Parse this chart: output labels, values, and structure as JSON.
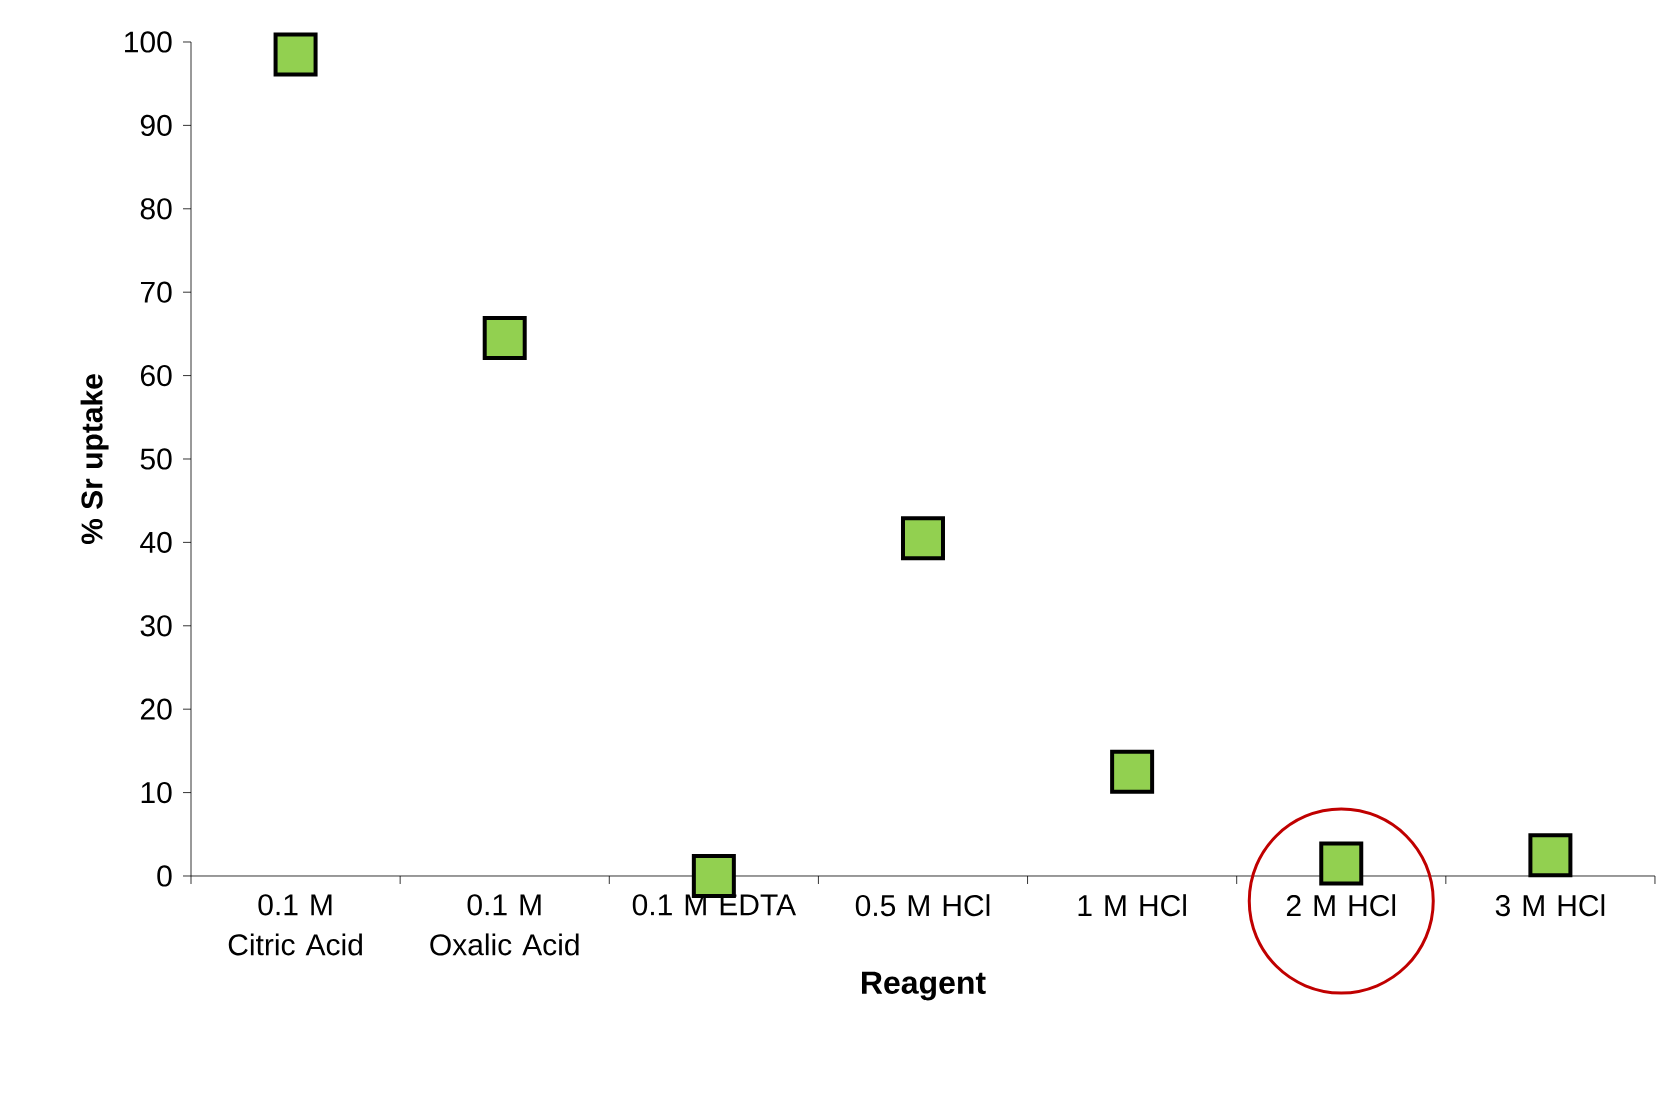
{
  "chart_data": {
    "type": "scatter",
    "xlabel": "Reagent",
    "ylabel": "% Sr uptake",
    "categories": [
      "0.1 M Citric Acid",
      "0.1 M Oxalic Acid",
      "0.1 M EDTA",
      "0.5 M HCl",
      "1 M HCl",
      "2 M HCl",
      "3 M HCl"
    ],
    "values": [
      98.5,
      64.5,
      0,
      40.5,
      12.5,
      1.5,
      2.5
    ],
    "color": "#92d050",
    "marker": "square",
    "grid": false,
    "ylim": [
      0,
      100
    ],
    "yticks": [
      0,
      10,
      20,
      30,
      40,
      50,
      60,
      70,
      80,
      90,
      100
    ]
  }
}
